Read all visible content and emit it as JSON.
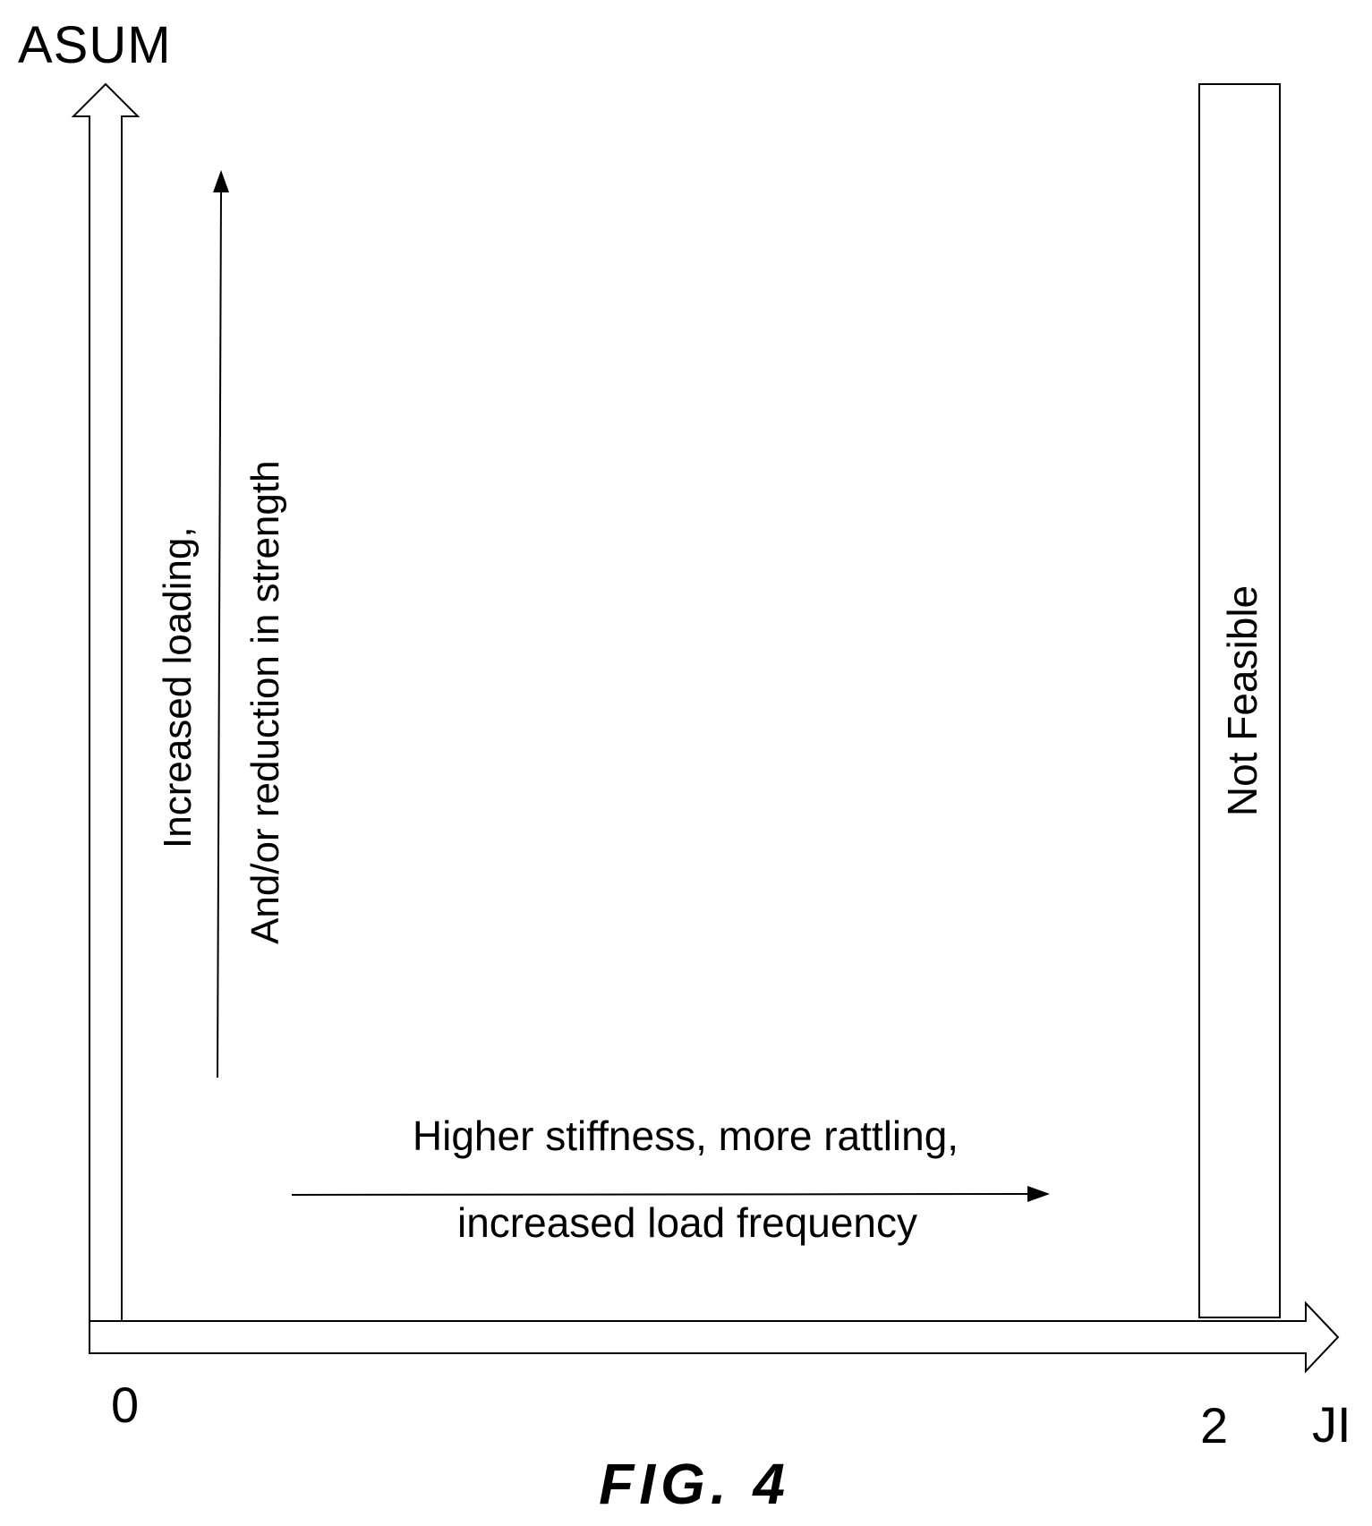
{
  "y_axis_label": "ASUM",
  "x_axis_label": "JI",
  "x_tick_start": "0",
  "x_tick_end": "2",
  "vertical_trend_line1": "Increased loading,",
  "vertical_trend_line2": "And/or reduction in strength",
  "horizontal_trend_line1": "Higher stiffness, more rattling,",
  "horizontal_trend_line2": "increased load frequency",
  "infeasible_region_label": "Not Feasible",
  "figure_caption": "FIG. 4"
}
